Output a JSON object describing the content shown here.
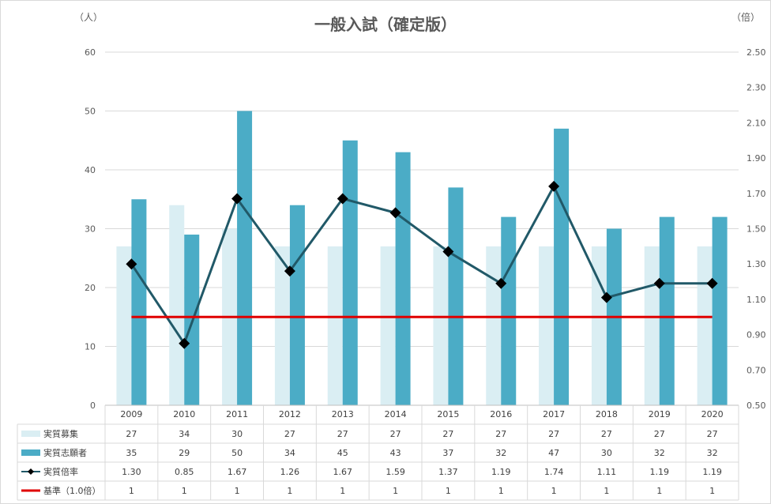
{
  "chart_data": {
    "type": "bar",
    "title": "一般入試（確定版）",
    "left_unit": "（人）",
    "right_unit": "（倍）",
    "ylim": [
      0,
      60
    ],
    "y_ticks": [
      0,
      10,
      20,
      30,
      40,
      50,
      60
    ],
    "y2lim": [
      0.5,
      2.5
    ],
    "y2_ticks": [
      "0.50",
      "0.70",
      "0.90",
      "1.10",
      "1.30",
      "1.50",
      "1.70",
      "1.90",
      "2.10",
      "2.30",
      "2.50"
    ],
    "categories": [
      "2009",
      "2010",
      "2011",
      "2012",
      "2013",
      "2014",
      "2015",
      "2016",
      "2017",
      "2018",
      "2019",
      "2020"
    ],
    "grid": true,
    "series": [
      {
        "name": "実質募集",
        "kind": "bar",
        "color": "#daeef3",
        "values": [
          27,
          34,
          30,
          27,
          27,
          27,
          27,
          27,
          27,
          27,
          27,
          27
        ]
      },
      {
        "name": "実質志願者",
        "kind": "bar",
        "color": "#4bacc6",
        "values": [
          35,
          29,
          50,
          34,
          45,
          43,
          37,
          32,
          47,
          30,
          32,
          32
        ]
      },
      {
        "name": "実質倍率",
        "kind": "line-marker",
        "axis": "right",
        "color": "#215968",
        "marker_color": "#000000",
        "values": [
          1.3,
          0.85,
          1.67,
          1.26,
          1.67,
          1.59,
          1.37,
          1.19,
          1.74,
          1.11,
          1.19,
          1.19
        ],
        "labels": [
          "1.30",
          "0.85",
          "1.67",
          "1.26",
          "1.67",
          "1.59",
          "1.37",
          "1.19",
          "1.74",
          "1.11",
          "1.19",
          "1.19"
        ]
      },
      {
        "name": "基準（1.0倍）",
        "kind": "line",
        "axis": "right",
        "color": "#e00000",
        "values": [
          1,
          1,
          1,
          1,
          1,
          1,
          1,
          1,
          1,
          1,
          1,
          1
        ],
        "labels": [
          "1",
          "1",
          "1",
          "1",
          "1",
          "1",
          "1",
          "1",
          "1",
          "1",
          "1",
          "1"
        ]
      }
    ]
  }
}
